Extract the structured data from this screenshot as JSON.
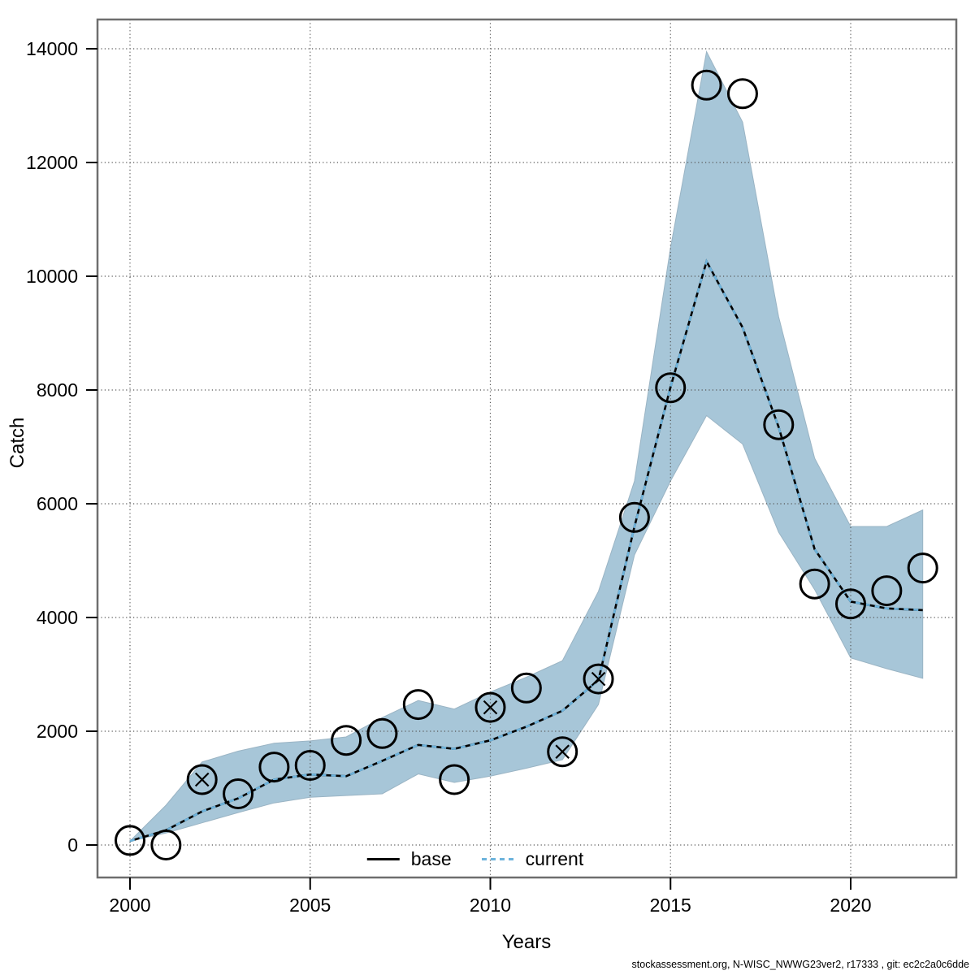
{
  "page": {
    "background": "#ffffff"
  },
  "axis_titles": {
    "y": "Catch",
    "x": "Years"
  },
  "legend": {
    "items": [
      {
        "label": "base"
      },
      {
        "label": "current"
      }
    ]
  },
  "footer_text": "stockassessment.org, N-WISC_NWWG23ver2, r17333 , git: ec2c2a0c6dde",
  "chart_data": {
    "type": "line",
    "title": "",
    "xlabel": "Years",
    "ylabel": "Catch",
    "grid": true,
    "legend_position": "bottom-center-inside",
    "xlim": [
      1999.1,
      2023.0
    ],
    "ylim": [
      -600,
      14500
    ],
    "xticks": [
      2000,
      2005,
      2010,
      2015,
      2020
    ],
    "yticks": [
      0,
      2000,
      4000,
      6000,
      8000,
      10000,
      12000,
      14000
    ],
    "x": [
      2000,
      2001,
      2002,
      2003,
      2004,
      2005,
      2006,
      2007,
      2008,
      2009,
      2010,
      2011,
      2012,
      2013,
      2014,
      2015,
      2016,
      2017,
      2018,
      2019,
      2020,
      2021,
      2022
    ],
    "series": [
      {
        "name": "base",
        "style": "solid",
        "color": "#000000",
        "values": [
          70,
          260,
          590,
          820,
          1150,
          1240,
          1210,
          1480,
          1760,
          1690,
          1840,
          2080,
          2360,
          2900,
          5600,
          8050,
          10260,
          9100,
          7350,
          5200,
          4280,
          4160,
          4130
        ]
      },
      {
        "name": "current",
        "style": "dashed",
        "color": "#6db3dc",
        "values": [
          70,
          260,
          590,
          820,
          1150,
          1240,
          1210,
          1480,
          1760,
          1690,
          1840,
          2080,
          2360,
          2900,
          5600,
          8050,
          10260,
          9100,
          7350,
          5200,
          4280,
          4160,
          4130
        ]
      }
    ],
    "confidence_band": {
      "series": "current",
      "color": "#a7c6d8",
      "low": [
        70,
        210,
        390,
        570,
        740,
        840,
        870,
        900,
        1250,
        1100,
        1210,
        1350,
        1500,
        2470,
        5100,
        6400,
        7550,
        7050,
        5500,
        4490,
        3290,
        3100,
        2930
      ],
      "high": [
        70,
        700,
        1460,
        1650,
        1790,
        1830,
        1900,
        2240,
        2540,
        2390,
        2690,
        2950,
        3240,
        4460,
        6400,
        10500,
        13950,
        12710,
        9290,
        6800,
        5600,
        5600,
        5890
      ]
    },
    "observations": {
      "marker": "open-circle",
      "color": "#000000",
      "values": [
        80,
        0,
        1150,
        900,
        1370,
        1400,
        1840,
        1960,
        2470,
        1150,
        2420,
        2760,
        1640,
        2920,
        5760,
        8040,
        13360,
        13210,
        7390,
        4590,
        4240,
        4470,
        4870
      ],
      "crossed_years": [
        2002,
        2010,
        2012,
        2013
      ]
    },
    "footer": "stockassessment.org, N-WISC_NWWG23ver2, r17333 , git: ec2c2a0c6dde"
  },
  "style": {
    "band_color": "#a7c6d8",
    "current_line_color": "#6db3dc",
    "base_line_color": "#000000",
    "grid_color": "#555555",
    "box_color": "#6e6e6e"
  }
}
